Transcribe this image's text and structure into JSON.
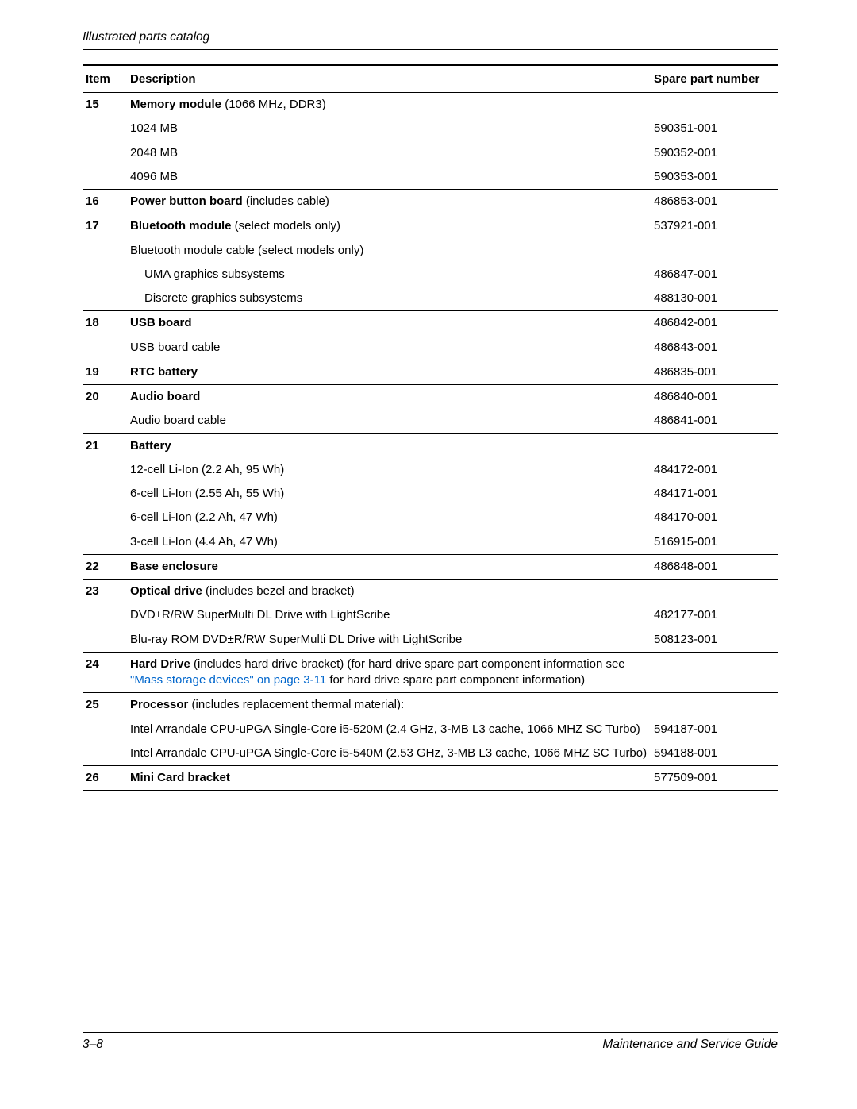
{
  "header": {
    "section_title": "Illustrated parts catalog"
  },
  "footer": {
    "page_num": "3–8",
    "doc_title": "Maintenance and Service Guide"
  },
  "columns": {
    "item": "Item",
    "description": "Description",
    "spn": "Spare part number"
  },
  "link_color": "#0066cc",
  "rows": [
    {
      "item": "15",
      "desc_bold": "Memory module",
      "desc_rest": " (1066 MHz, DDR3)",
      "spn": "",
      "sep": false
    },
    {
      "item": "",
      "desc": "1024 MB",
      "spn": "590351-001",
      "sep": false
    },
    {
      "item": "",
      "desc": "2048 MB",
      "spn": "590352-001",
      "sep": false
    },
    {
      "item": "",
      "desc": "4096 MB",
      "spn": "590353-001",
      "sep": true
    },
    {
      "item": "16",
      "desc_bold": "Power button board",
      "desc_rest": " (includes cable)",
      "spn": "486853-001",
      "sep": true
    },
    {
      "item": "17",
      "desc_bold": "Bluetooth module",
      "desc_rest": " (select models only)",
      "spn": "537921-001",
      "sep": false
    },
    {
      "item": "",
      "desc": "Bluetooth module cable (select models only)",
      "spn": "",
      "sep": false
    },
    {
      "item": "",
      "desc_indent": "UMA graphics subsystems",
      "spn": "486847-001",
      "sep": false
    },
    {
      "item": "",
      "desc_indent": "Discrete graphics subsystems",
      "spn": "488130-001",
      "sep": true
    },
    {
      "item": "18",
      "desc_bold": "USB board",
      "spn": "486842-001",
      "sep": false
    },
    {
      "item": "",
      "desc": "USB board cable",
      "spn": "486843-001",
      "sep": true
    },
    {
      "item": "19",
      "desc_bold": "RTC battery",
      "spn": "486835-001",
      "sep": true
    },
    {
      "item": "20",
      "desc_bold": "Audio board",
      "spn": "486840-001",
      "sep": false
    },
    {
      "item": "",
      "desc": "Audio board cable",
      "spn": "486841-001",
      "sep": true
    },
    {
      "item": "21",
      "desc_bold": "Battery",
      "spn": "",
      "sep": false
    },
    {
      "item": "",
      "desc": "12-cell Li-Ion (2.2 Ah, 95 Wh)",
      "spn": "484172-001",
      "sep": false
    },
    {
      "item": "",
      "desc": "6-cell Li-Ion (2.55 Ah, 55 Wh)",
      "spn": "484171-001",
      "sep": false
    },
    {
      "item": "",
      "desc": "6-cell Li-Ion (2.2 Ah, 47 Wh)",
      "spn": "484170-001",
      "sep": false
    },
    {
      "item": "",
      "desc": "3-cell Li-Ion (4.4 Ah, 47 Wh)",
      "spn": "516915-001",
      "sep": true
    },
    {
      "item": "22",
      "desc_bold": "Base enclosure",
      "spn": "486848-001",
      "sep": true
    },
    {
      "item": "23",
      "desc_bold": "Optical drive",
      "desc_rest": " (includes bezel and bracket)",
      "spn": "",
      "sep": false
    },
    {
      "item": "",
      "desc": "DVD±R/RW SuperMulti DL Drive with LightScribe",
      "spn": "482177-001",
      "sep": false
    },
    {
      "item": "",
      "desc": "Blu-ray ROM DVD±R/RW SuperMulti DL Drive with LightScribe",
      "spn": "508123-001",
      "sep": true
    },
    {
      "item": "24",
      "desc_bold": "Hard Drive",
      "desc_rest": " (includes hard drive bracket) (for hard drive spare part component information see ",
      "link_text": "\"Mass storage devices\" on page 3-11",
      "desc_after_link": " for hard drive spare part component information)",
      "spn": "",
      "sep": true
    },
    {
      "item": "25",
      "desc_bold": "Processor",
      "desc_rest": " (includes replacement thermal material):",
      "spn": "",
      "sep": false
    },
    {
      "item": "",
      "desc": "Intel Arrandale CPU-uPGA Single-Core i5-520M (2.4 GHz, 3-MB L3 cache, 1066 MHZ SC Turbo)",
      "spn": "594187-001",
      "sep": false
    },
    {
      "item": "",
      "desc": "Intel Arrandale CPU-uPGA Single-Core i5-540M (2.53 GHz, 3-MB L3 cache, 1066 MHZ SC Turbo)",
      "spn": "594188-001",
      "sep": true
    },
    {
      "item": "26",
      "desc_bold": "Mini Card bracket",
      "spn": "577509-001",
      "sep": false
    }
  ]
}
